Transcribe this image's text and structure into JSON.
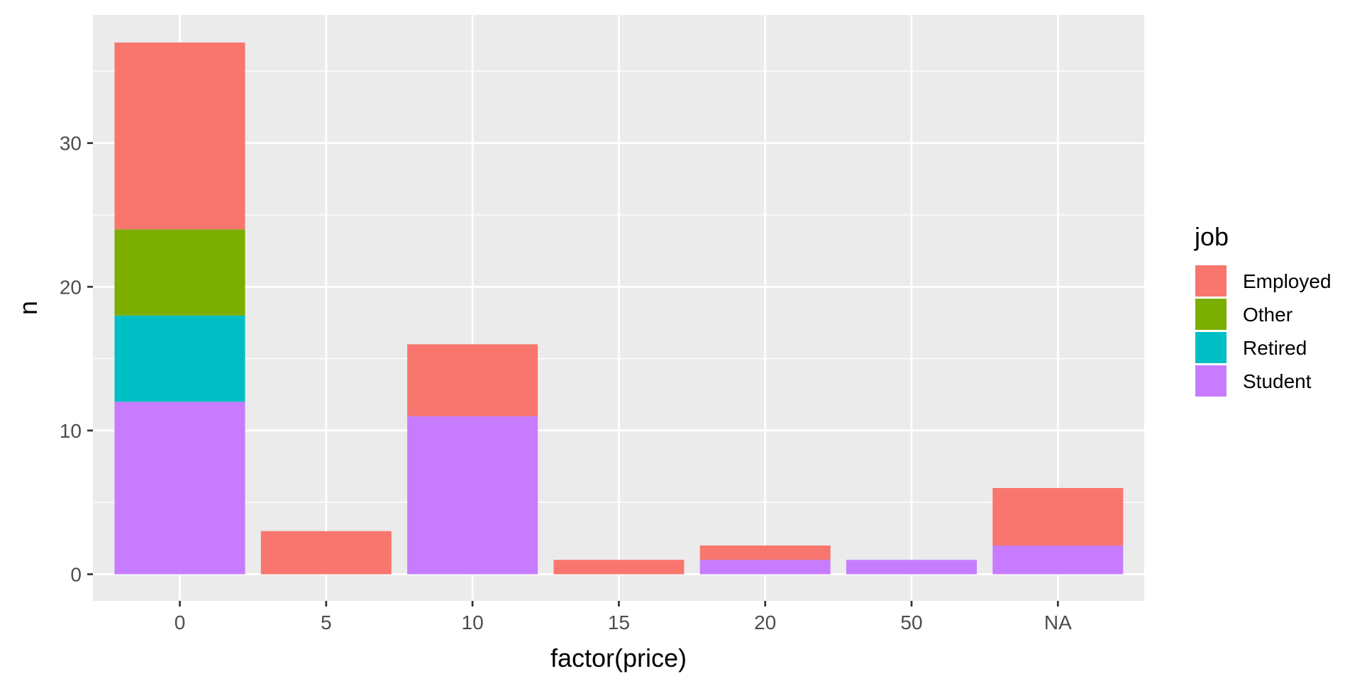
{
  "chart_data": {
    "type": "bar",
    "stacked": true,
    "title": "",
    "xlabel": "factor(price)",
    "ylabel": "n",
    "categories": [
      "0",
      "5",
      "10",
      "15",
      "20",
      "50",
      "NA"
    ],
    "ylim": [
      0,
      38.9
    ],
    "yticks": [
      0,
      10,
      20,
      30
    ],
    "grid": true,
    "legend": {
      "title": "job",
      "placement": "right",
      "entries": [
        "Employed",
        "Other",
        "Retired",
        "Student"
      ]
    },
    "series": [
      {
        "name": "Employed",
        "color": "#F8766D",
        "values": [
          13,
          3,
          5,
          1,
          1,
          0,
          4
        ]
      },
      {
        "name": "Other",
        "color": "#7CAE00",
        "values": [
          6,
          0,
          0,
          0,
          0,
          0,
          0
        ]
      },
      {
        "name": "Retired",
        "color": "#00BFC4",
        "values": [
          6,
          0,
          0,
          0,
          0,
          0,
          0
        ]
      },
      {
        "name": "Student",
        "color": "#C77CFF",
        "values": [
          12,
          0,
          11,
          0,
          1,
          1,
          2
        ]
      }
    ],
    "colors": {
      "panel_background": "#EBEBEB",
      "grid_line": "#FFFFFF"
    }
  }
}
